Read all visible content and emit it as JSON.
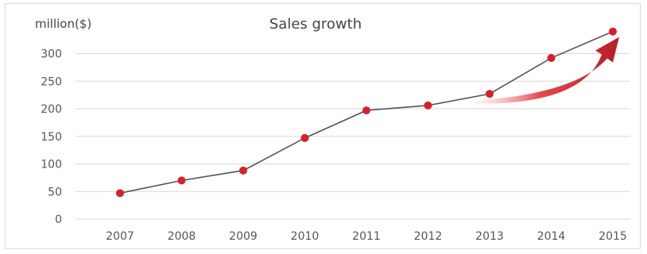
{
  "chart_data": {
    "type": "line",
    "title": "Sales growth",
    "ylabel": "million($)",
    "xlabel": "",
    "categories": [
      "2007",
      "2008",
      "2009",
      "2010",
      "2011",
      "2012",
      "2013",
      "2014",
      "2015"
    ],
    "values": [
      47,
      70,
      88,
      147,
      197,
      206,
      227,
      292,
      340
    ],
    "ylim": [
      0,
      300
    ],
    "yticks": [
      0,
      50,
      100,
      150,
      200,
      250,
      300
    ],
    "grid": true,
    "colors": {
      "line": "#555555",
      "marker": "#d7202c",
      "grid": "#d9d9d9",
      "arrow": "#c42027"
    },
    "annotation": "growth-arrow"
  }
}
